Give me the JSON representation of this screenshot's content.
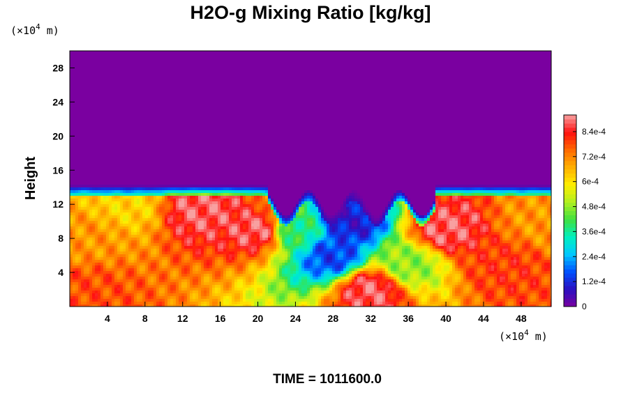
{
  "chart_data": {
    "type": "heatmap",
    "title": "H2O-g Mixing Ratio [kg/kg]",
    "ylabel": "Height",
    "xlabel": "",
    "x_unit": {
      "prefix": "(×10",
      "exp": "4",
      "suffix": " m)"
    },
    "y_unit": {
      "prefix": "(×10",
      "exp": "4",
      "suffix": " m)"
    },
    "xlim": [
      0,
      51.2
    ],
    "ylim": [
      0,
      30
    ],
    "x_ticks": [
      4,
      8,
      12,
      16,
      20,
      24,
      28,
      32,
      36,
      40,
      44,
      48
    ],
    "x_tick_labels": [
      "4",
      "8",
      "12",
      "16",
      "20",
      "24",
      "28",
      "32",
      "36",
      "40",
      "44",
      "48"
    ],
    "y_ticks": [
      4,
      8,
      12,
      16,
      20,
      24,
      28
    ],
    "y_tick_labels": [
      "4",
      "8",
      "12",
      "16",
      "20",
      "24",
      "28"
    ],
    "colorbar": {
      "min": 0,
      "max": 0.00092,
      "ticks": [
        0,
        0.00012,
        0.00024,
        0.00036,
        0.00048,
        0.0006,
        0.00072,
        0.00084
      ],
      "tick_labels": [
        "0",
        "1.2e-4",
        "2.4e-4",
        "3.6e-4",
        "4.8e-4",
        "6e-4",
        "7.2e-4",
        "8.4e-4"
      ],
      "levels": 46,
      "colors": [
        "#7a00a0",
        "#2a10c0",
        "#0050ff",
        "#00c8ff",
        "#00f0c0",
        "#40e040",
        "#b0f020",
        "#ffee00",
        "#ffb000",
        "#ff6a00",
        "#ff1010",
        "#f8a0a0"
      ]
    },
    "dry_value": 0,
    "moist_layer_top": 13.6,
    "field_description_points": [
      {
        "x": 2,
        "y": 2,
        "v": 0.00078
      },
      {
        "x": 2,
        "y": 8,
        "v": 0.0007
      },
      {
        "x": 6,
        "y": 12,
        "v": 0.00062
      },
      {
        "x": 14,
        "y": 11.5,
        "v": 0.00088
      },
      {
        "x": 20,
        "y": 9,
        "v": 0.00088
      },
      {
        "x": 24,
        "y": 9,
        "v": 0.00038
      },
      {
        "x": 28,
        "y": 6,
        "v": 0.00015
      },
      {
        "x": 30,
        "y": 10,
        "v": 0.0001
      },
      {
        "x": 32,
        "y": 2,
        "v": 0.00088
      },
      {
        "x": 36,
        "y": 5,
        "v": 0.00048
      },
      {
        "x": 40,
        "y": 9,
        "v": 0.00088
      },
      {
        "x": 46,
        "y": 5,
        "v": 0.0008
      },
      {
        "x": 50,
        "y": 10,
        "v": 0.0007
      }
    ]
  },
  "footer": {
    "time_label": "TIME = 1011600.0"
  }
}
